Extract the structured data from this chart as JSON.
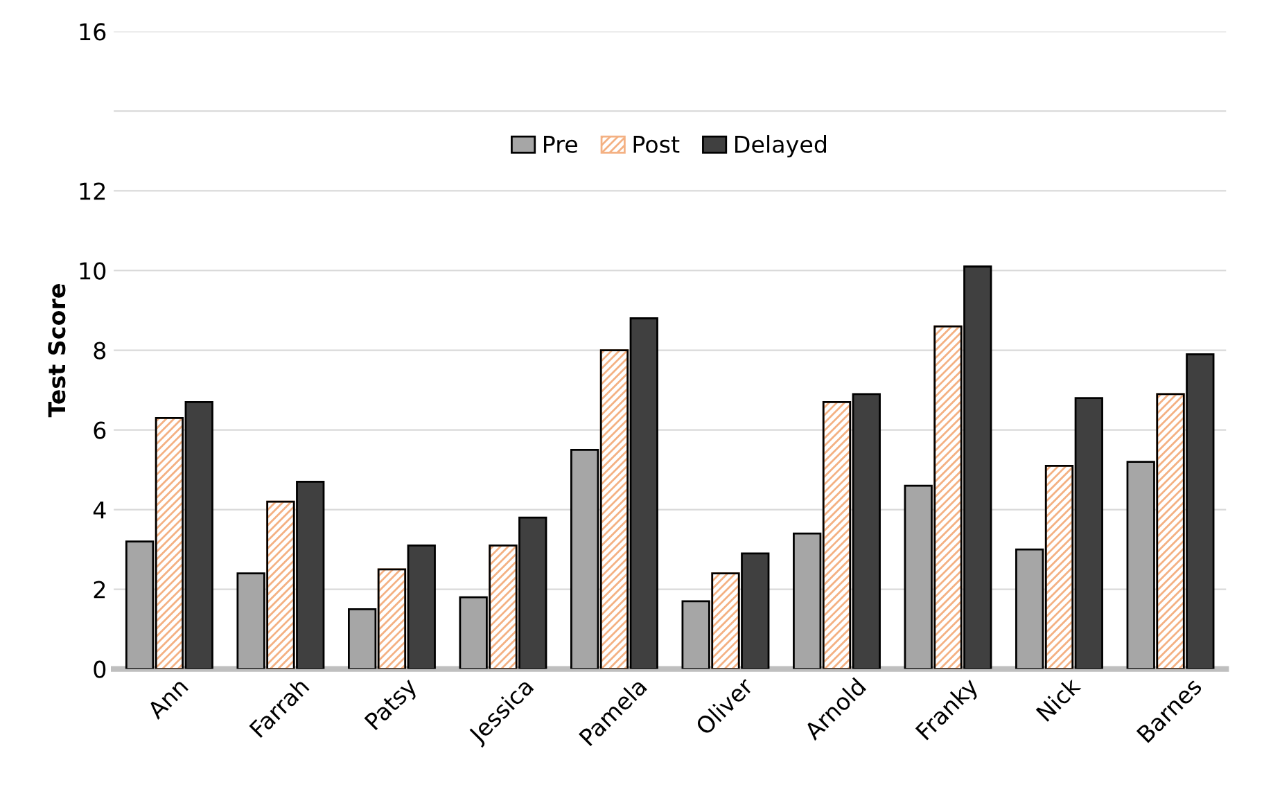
{
  "chart_data": {
    "type": "bar",
    "ylabel": "Test Score",
    "categories": [
      "Ann",
      "Farrah",
      "Patsy",
      "Jessica",
      "Pamela",
      "Oliver",
      "Arnold",
      "Franky",
      "Nick",
      "Barnes"
    ],
    "series": [
      {
        "name": "Pre",
        "color": "#a6a6a6",
        "values": [
          3.2,
          2.4,
          1.5,
          1.8,
          5.5,
          1.7,
          3.4,
          4.6,
          3.0,
          5.2
        ]
      },
      {
        "name": "Post",
        "color": "#f4b183",
        "values": [
          6.3,
          4.2,
          2.5,
          3.1,
          8.0,
          2.4,
          6.7,
          8.6,
          5.1,
          6.9
        ]
      },
      {
        "name": "Delayed",
        "color": "#404040",
        "values": [
          6.7,
          4.7,
          3.1,
          3.8,
          8.8,
          2.9,
          6.9,
          10.1,
          6.8,
          7.9
        ]
      }
    ],
    "ylim": [
      0,
      16
    ],
    "yticks": [
      0,
      2,
      4,
      6,
      8,
      10,
      12,
      {
        "value": 14,
        "label": null
      },
      16
    ],
    "grid": "y",
    "legend": "top"
  }
}
